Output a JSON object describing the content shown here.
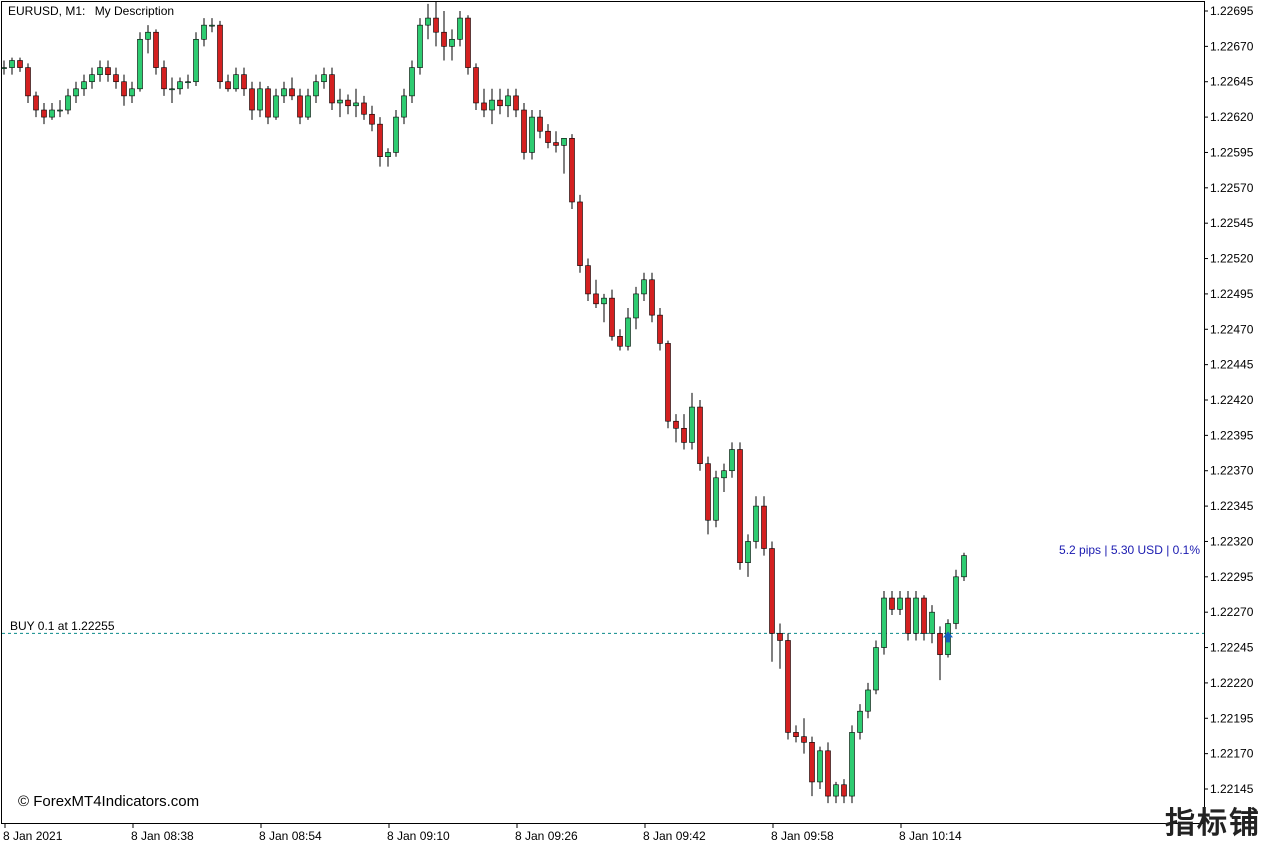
{
  "header": {
    "symbol_label": "EURUSD, M1:",
    "description": "My Description"
  },
  "trade": {
    "label": "BUY 0.1 at 1.22255",
    "price": 1.22255,
    "profit_label": "5.2 pips | 5.30 USD | 0.1%",
    "line_color": "#0a8a8a",
    "arrow_color": "#1560bd",
    "profit_color": "#1a1ab0"
  },
  "watermark": "© ForexMT4Indicators.com",
  "logo_text": "指标铺",
  "colors": {
    "bull": "#2ecc71",
    "bear": "#d42020",
    "wick": "#000000",
    "axis": "#000000"
  },
  "chart_data": {
    "type": "candlestick",
    "y_axis_labels": [
      "1.22695",
      "1.22670",
      "1.22645",
      "1.22620",
      "1.22595",
      "1.22570",
      "1.22545",
      "1.22520",
      "1.22495",
      "1.22470",
      "1.22445",
      "1.22420",
      "1.22395",
      "1.22370",
      "1.22345",
      "1.22320",
      "1.22295",
      "1.22270",
      "1.22245",
      "1.22220",
      "1.22195",
      "1.22170",
      "1.22145"
    ],
    "ylim": [
      1.22128,
      1.22699
    ],
    "x_axis_labels": [
      "8 Jan 2021",
      "8 Jan 08:38",
      "8 Jan 08:54",
      "8 Jan 09:10",
      "8 Jan 09:26",
      "8 Jan 09:42",
      "8 Jan 09:58",
      "8 Jan 10:14"
    ],
    "candles": [
      [
        1.22655,
        1.2266,
        1.2265,
        1.22655
      ],
      [
        1.22655,
        1.22662,
        1.2265,
        1.2266
      ],
      [
        1.2266,
        1.22662,
        1.22652,
        1.22655
      ],
      [
        1.22655,
        1.22658,
        1.2263,
        1.22635
      ],
      [
        1.22635,
        1.22638,
        1.2262,
        1.22625
      ],
      [
        1.22625,
        1.2263,
        1.22615,
        1.2262
      ],
      [
        1.2262,
        1.2263,
        1.22618,
        1.22625
      ],
      [
        1.22625,
        1.22632,
        1.2262,
        1.22625
      ],
      [
        1.22625,
        1.2264,
        1.22622,
        1.22635
      ],
      [
        1.22635,
        1.22645,
        1.2263,
        1.2264
      ],
      [
        1.2264,
        1.2265,
        1.22635,
        1.22645
      ],
      [
        1.22645,
        1.22655,
        1.2264,
        1.2265
      ],
      [
        1.2265,
        1.2266,
        1.22645,
        1.22655
      ],
      [
        1.22655,
        1.2266,
        1.22645,
        1.2265
      ],
      [
        1.2265,
        1.22655,
        1.2264,
        1.22645
      ],
      [
        1.22645,
        1.2265,
        1.22628,
        1.22635
      ],
      [
        1.22635,
        1.22645,
        1.2263,
        1.2264
      ],
      [
        1.2264,
        1.2268,
        1.22638,
        1.22675
      ],
      [
        1.22675,
        1.22685,
        1.22665,
        1.2268
      ],
      [
        1.2268,
        1.22682,
        1.2265,
        1.22655
      ],
      [
        1.22655,
        1.2266,
        1.22635,
        1.2264
      ],
      [
        1.2264,
        1.22648,
        1.2263,
        1.2264
      ],
      [
        1.2264,
        1.22648,
        1.22636,
        1.22645
      ],
      [
        1.22645,
        1.2265,
        1.2264,
        1.22645
      ],
      [
        1.22645,
        1.2268,
        1.22642,
        1.22675
      ],
      [
        1.22675,
        1.2269,
        1.2267,
        1.22685
      ],
      [
        1.22685,
        1.2269,
        1.2268,
        1.22685
      ],
      [
        1.22685,
        1.22688,
        1.2264,
        1.22645
      ],
      [
        1.22645,
        1.2265,
        1.22638,
        1.2264
      ],
      [
        1.2264,
        1.22655,
        1.22638,
        1.2265
      ],
      [
        1.2265,
        1.22655,
        1.22635,
        1.2264
      ],
      [
        1.2264,
        1.22645,
        1.22618,
        1.22625
      ],
      [
        1.22625,
        1.22645,
        1.2262,
        1.2264
      ],
      [
        1.2264,
        1.22642,
        1.22615,
        1.2262
      ],
      [
        1.2262,
        1.2264,
        1.22618,
        1.22635
      ],
      [
        1.22635,
        1.22645,
        1.2263,
        1.2264
      ],
      [
        1.2264,
        1.22648,
        1.22632,
        1.22635
      ],
      [
        1.22635,
        1.2264,
        1.22615,
        1.2262
      ],
      [
        1.2262,
        1.2264,
        1.22618,
        1.22635
      ],
      [
        1.22635,
        1.2265,
        1.2263,
        1.22645
      ],
      [
        1.22645,
        1.22655,
        1.2264,
        1.2265
      ],
      [
        1.2265,
        1.22655,
        1.22625,
        1.2263
      ],
      [
        1.2263,
        1.2264,
        1.2262,
        1.22632
      ],
      [
        1.22632,
        1.22636,
        1.22622,
        1.22628
      ],
      [
        1.22628,
        1.2264,
        1.2262,
        1.2263
      ],
      [
        1.2263,
        1.22635,
        1.22618,
        1.22622
      ],
      [
        1.22622,
        1.22628,
        1.2261,
        1.22615
      ],
      [
        1.22615,
        1.2262,
        1.22585,
        1.22592
      ],
      [
        1.22592,
        1.22598,
        1.22585,
        1.22595
      ],
      [
        1.22595,
        1.22625,
        1.22592,
        1.2262
      ],
      [
        1.2262,
        1.2264,
        1.22615,
        1.22635
      ],
      [
        1.22635,
        1.2266,
        1.2263,
        1.22655
      ],
      [
        1.22655,
        1.2269,
        1.2265,
        1.22685
      ],
      [
        1.22685,
        1.227,
        1.22675,
        1.2269
      ],
      [
        1.2269,
        1.22702,
        1.2267,
        1.2268
      ],
      [
        1.2268,
        1.22695,
        1.2266,
        1.2267
      ],
      [
        1.2267,
        1.22682,
        1.2266,
        1.22675
      ],
      [
        1.22675,
        1.22695,
        1.2267,
        1.2269
      ],
      [
        1.2269,
        1.22692,
        1.2265,
        1.22655
      ],
      [
        1.22655,
        1.22658,
        1.22625,
        1.2263
      ],
      [
        1.2263,
        1.2264,
        1.2262,
        1.22625
      ],
      [
        1.22625,
        1.2264,
        1.22615,
        1.22632
      ],
      [
        1.22632,
        1.2264,
        1.22622,
        1.22628
      ],
      [
        1.22628,
        1.2264,
        1.2262,
        1.22635
      ],
      [
        1.22635,
        1.2264,
        1.2262,
        1.22625
      ],
      [
        1.22625,
        1.2263,
        1.2259,
        1.22595
      ],
      [
        1.22595,
        1.22625,
        1.2259,
        1.2262
      ],
      [
        1.2262,
        1.22625,
        1.22605,
        1.2261
      ],
      [
        1.2261,
        1.22615,
        1.22598,
        1.22602
      ],
      [
        1.22602,
        1.2261,
        1.22595,
        1.226
      ],
      [
        1.226,
        1.22605,
        1.2258,
        1.22605
      ],
      [
        1.22605,
        1.22608,
        1.22555,
        1.2256
      ],
      [
        1.2256,
        1.22565,
        1.2251,
        1.22515
      ],
      [
        1.22515,
        1.2252,
        1.2249,
        1.22495
      ],
      [
        1.22495,
        1.22505,
        1.22485,
        1.22488
      ],
      [
        1.22488,
        1.22495,
        1.22475,
        1.22492
      ],
      [
        1.22492,
        1.22498,
        1.22462,
        1.22465
      ],
      [
        1.22465,
        1.2247,
        1.22455,
        1.22458
      ],
      [
        1.22458,
        1.22485,
        1.22455,
        1.22478
      ],
      [
        1.22478,
        1.225,
        1.2247,
        1.22495
      ],
      [
        1.22495,
        1.2251,
        1.2249,
        1.22505
      ],
      [
        1.22505,
        1.2251,
        1.22475,
        1.2248
      ],
      [
        1.2248,
        1.22485,
        1.22455,
        1.2246
      ],
      [
        1.2246,
        1.22462,
        1.224,
        1.22405
      ],
      [
        1.22405,
        1.2241,
        1.2239,
        1.224
      ],
      [
        1.224,
        1.2241,
        1.22385,
        1.2239
      ],
      [
        1.2239,
        1.22425,
        1.22385,
        1.22415
      ],
      [
        1.22415,
        1.2242,
        1.2237,
        1.22375
      ],
      [
        1.22375,
        1.2238,
        1.22325,
        1.22335
      ],
      [
        1.22335,
        1.2237,
        1.2233,
        1.22365
      ],
      [
        1.22365,
        1.22375,
        1.22355,
        1.2237
      ],
      [
        1.2237,
        1.2239,
        1.22365,
        1.22385
      ],
      [
        1.22385,
        1.2239,
        1.223,
        1.22305
      ],
      [
        1.22305,
        1.22325,
        1.22295,
        1.2232
      ],
      [
        1.2232,
        1.22352,
        1.22315,
        1.22345
      ],
      [
        1.22345,
        1.22352,
        1.2231,
        1.22315
      ],
      [
        1.22315,
        1.2232,
        1.22235,
        1.22255
      ],
      [
        1.22255,
        1.22262,
        1.2223,
        1.2225
      ],
      [
        1.2225,
        1.22255,
        1.2218,
        1.22185
      ],
      [
        1.22185,
        1.2219,
        1.22178,
        1.22182
      ],
      [
        1.22182,
        1.22195,
        1.2217,
        1.22178
      ],
      [
        1.22178,
        1.22182,
        1.2214,
        1.2215
      ],
      [
        1.2215,
        1.22175,
        1.22145,
        1.22172
      ],
      [
        1.22172,
        1.22178,
        1.22135,
        1.2214
      ],
      [
        1.2214,
        1.2215,
        1.22135,
        1.22148
      ],
      [
        1.22148,
        1.22152,
        1.22135,
        1.2214
      ],
      [
        1.2214,
        1.2219,
        1.22135,
        1.22185
      ],
      [
        1.22185,
        1.22205,
        1.2218,
        1.222
      ],
      [
        1.222,
        1.2222,
        1.22195,
        1.22215
      ],
      [
        1.22215,
        1.2225,
        1.22212,
        1.22245
      ],
      [
        1.22245,
        1.22285,
        1.2224,
        1.2228
      ],
      [
        1.2228,
        1.22285,
        1.22268,
        1.22272
      ],
      [
        1.22272,
        1.22285,
        1.22268,
        1.2228
      ],
      [
        1.2228,
        1.22285,
        1.2225,
        1.22255
      ],
      [
        1.22255,
        1.22285,
        1.2225,
        1.2228
      ],
      [
        1.2228,
        1.22282,
        1.2225,
        1.22255
      ],
      [
        1.22255,
        1.22275,
        1.22248,
        1.2227
      ],
      [
        1.22255,
        1.2226,
        1.22222,
        1.2224
      ],
      [
        1.2224,
        1.22265,
        1.22238,
        1.22262
      ],
      [
        1.22262,
        1.223,
        1.22258,
        1.22295
      ],
      [
        1.22295,
        1.22312,
        1.22292,
        1.2231
      ]
    ]
  }
}
